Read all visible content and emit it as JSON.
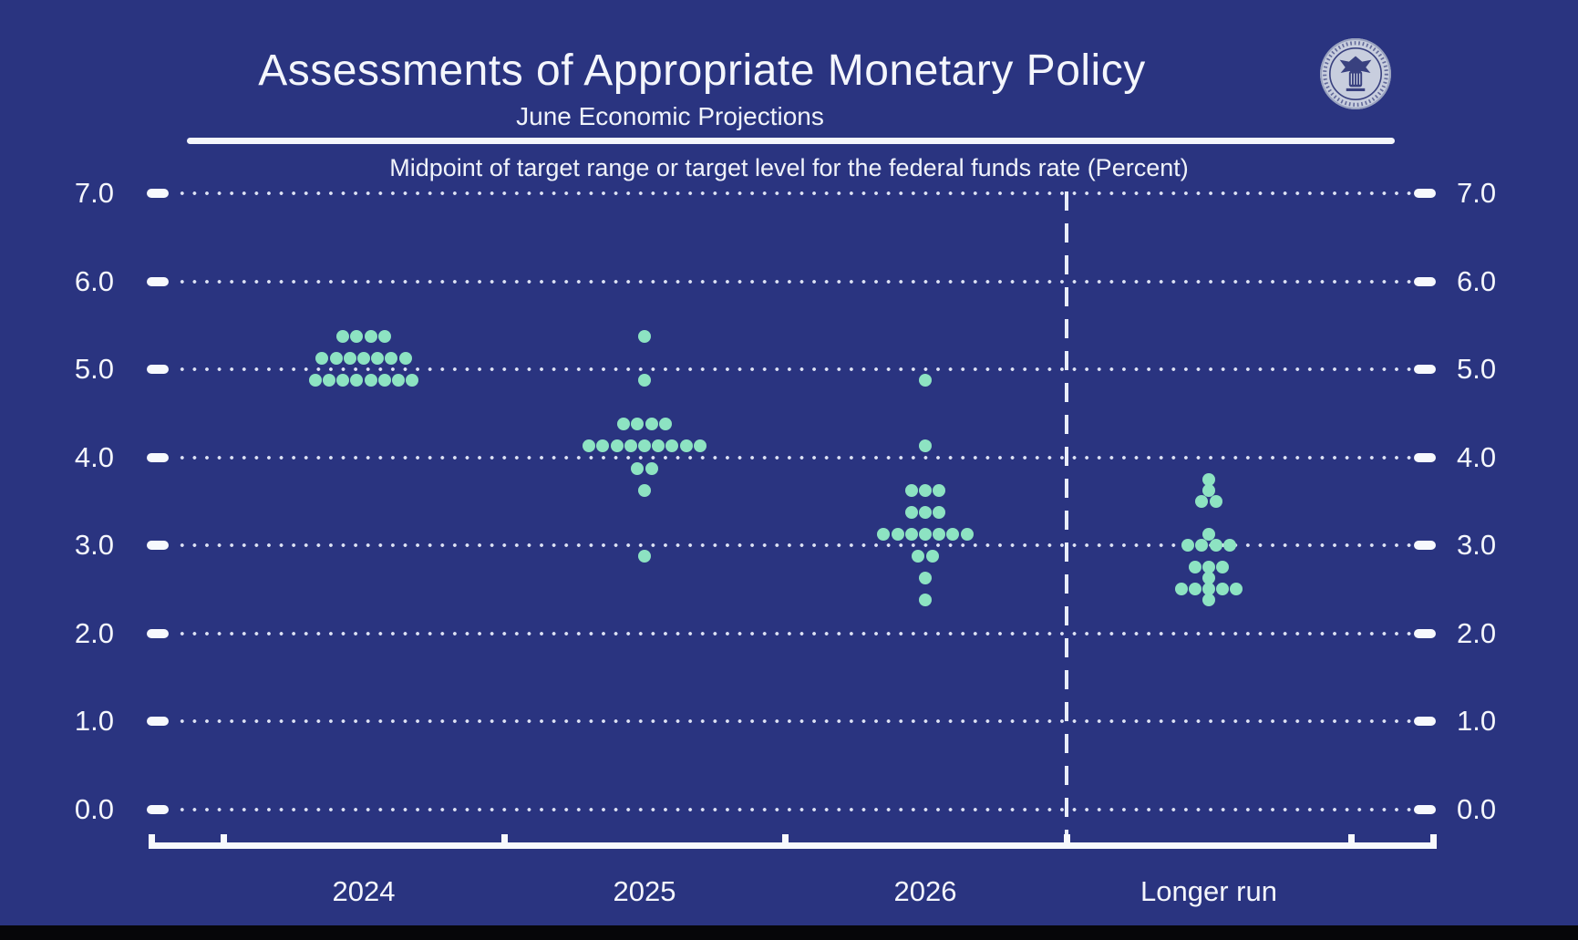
{
  "header": {
    "title": "Assessments of Appropriate Monetary Policy",
    "subtitle": "June Economic Projections",
    "axis_note": "Midpoint of target range or target level for the federal funds rate (Percent)",
    "seal_name": "federal-reserve-seal"
  },
  "colors": {
    "background": "#2A3480",
    "dot": "#8DE3C2",
    "text": "#F4F6FC",
    "gridline": "#EEF2FF",
    "seal_base": "#C8CEDE",
    "seal_detail": "#39417F"
  },
  "chart_data": {
    "type": "scatter",
    "title": "Assessments of Appropriate Monetary Policy",
    "subtitle": "June Economic Projections",
    "ylabel": "Midpoint of target range or target level for the federal funds rate (Percent)",
    "xlabel": "",
    "ylim": [
      0.0,
      7.0
    ],
    "y_tick_step": 1.0,
    "y_ticks": [
      "7.0",
      "6.0",
      "5.0",
      "4.0",
      "3.0",
      "2.0",
      "1.0",
      "0.0"
    ],
    "grid": "dotted horizontal, labels on both sides",
    "legend_position": "none",
    "categories": [
      "2024",
      "2025",
      "2026",
      "Longer run"
    ],
    "separator": "dashed vertical line between 2026 and Longer run",
    "participants_per_column": 19,
    "series": [
      {
        "name": "2024",
        "dots": {
          "5.375": 4,
          "5.125": 7,
          "4.875": 8
        }
      },
      {
        "name": "2025",
        "dots": {
          "5.375": 1,
          "4.875": 1,
          "4.375": 4,
          "4.125": 9,
          "3.875": 2,
          "3.625": 1,
          "2.875": 1
        }
      },
      {
        "name": "2026",
        "dots": {
          "4.875": 1,
          "4.125": 1,
          "3.625": 3,
          "3.375": 3,
          "3.125": 7,
          "2.875": 2,
          "2.625": 1,
          "2.375": 1
        }
      },
      {
        "name": "Longer run",
        "dots": {
          "3.75": 1,
          "3.625": 1,
          "3.5": 2,
          "3.125": 1,
          "3.0": 4,
          "2.75": 3,
          "2.625": 1,
          "2.5": 5,
          "2.375": 1
        }
      }
    ],
    "medians": {
      "2024": 5.125,
      "2025": 4.125,
      "2026": 3.125,
      "Longer run": 2.75
    }
  }
}
